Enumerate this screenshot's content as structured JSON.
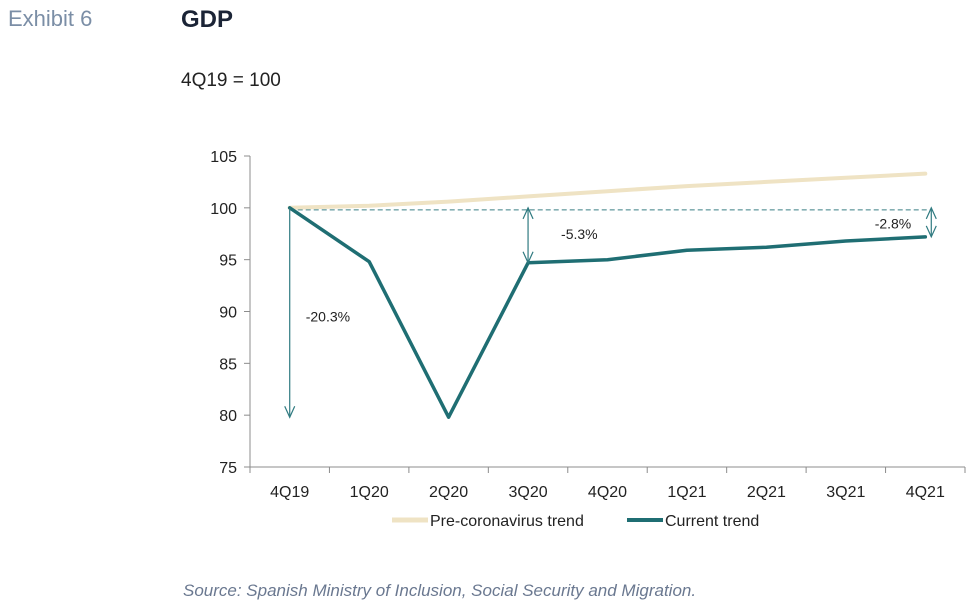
{
  "header": {
    "exhibit_label": "Exhibit 6",
    "title": "GDP",
    "subtitle": "4Q19 = 100"
  },
  "footer": {
    "source": "Source: Spanish Ministry of Inclusion, Social Security and Migration."
  },
  "chart_data": {
    "type": "line",
    "title": "GDP",
    "subtitle": "4Q19 = 100",
    "categories": [
      "4Q19",
      "1Q20",
      "2Q20",
      "3Q20",
      "4Q20",
      "1Q21",
      "2Q21",
      "3Q21",
      "4Q21"
    ],
    "ylim": [
      75,
      105
    ],
    "yticks": [
      75,
      80,
      85,
      90,
      95,
      100,
      105
    ],
    "grid": false,
    "legend_position": "bottom",
    "series": [
      {
        "name": "Pre-coronavirus trend",
        "color": "#efe3c4",
        "values": [
          100,
          100.2,
          100.6,
          101.1,
          101.6,
          102.1,
          102.5,
          102.9,
          103.3
        ]
      },
      {
        "name": "Current trend",
        "color": "#1f6e73",
        "values": [
          100,
          94.8,
          79.8,
          94.7,
          95,
          95.9,
          96.2,
          96.8,
          97.2
        ]
      }
    ],
    "reference_line": {
      "value": 99.8,
      "style": "dashed"
    },
    "annotations": [
      {
        "text": "-20.3%",
        "category": "4Q19",
        "from": 100,
        "to": 79.8
      },
      {
        "text": "-5.3%",
        "category": "3Q20",
        "from": 100,
        "to": 94.7
      },
      {
        "text": "-2.8%",
        "category": "4Q21",
        "from": 100,
        "to": 97.2
      }
    ]
  }
}
